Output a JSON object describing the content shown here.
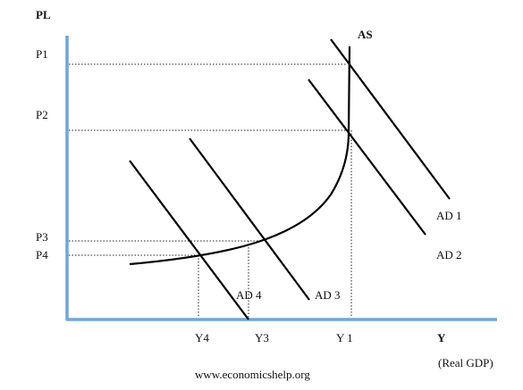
{
  "axes": {
    "y_label": "PL",
    "x_label": "Y",
    "x_unit": "(Real GDP)"
  },
  "price_levels": [
    "P1",
    "P2",
    "P3",
    "P4"
  ],
  "outputs": [
    "Y4",
    "Y3",
    "Y 1"
  ],
  "curves": {
    "supply": "AS",
    "demand": [
      "AD 1",
      "AD 2",
      "AD 3",
      "AD 4"
    ]
  },
  "footer": "www.economicshelp.org"
}
